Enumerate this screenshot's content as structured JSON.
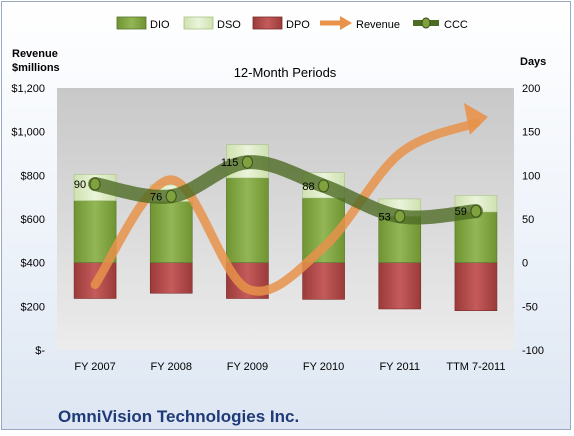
{
  "chart_data": {
    "type": "bar",
    "title": "12-Month Periods",
    "company": "OmniVision Technologies Inc.",
    "left_axis_label": [
      "Revenue",
      "$millions"
    ],
    "right_axis_label": "Days",
    "left_axis": {
      "min": 0,
      "max": 1200,
      "ticks": [
        "$-",
        "$200",
        "$400",
        "$600",
        "$800",
        "$1,000",
        "$1,200"
      ]
    },
    "right_axis": {
      "min": -100,
      "max": 200,
      "ticks": [
        "-100",
        "-50",
        "0",
        "50",
        "100",
        "150",
        "200"
      ]
    },
    "categories": [
      "FY 2007",
      "FY 2008",
      "FY 2009",
      "FY 2010",
      "FY 2011",
      "TTM 7-2011"
    ],
    "series": [
      {
        "name": "DIO",
        "type": "stacked-bar",
        "axis": "right",
        "values": [
          71,
          70,
          97,
          74,
          53,
          58
        ],
        "color": "#7fa23f"
      },
      {
        "name": "DSO",
        "type": "stacked-bar",
        "axis": "right",
        "values": [
          30,
          19,
          38,
          29,
          20,
          19
        ],
        "color": "#dcebc4"
      },
      {
        "name": "DPO",
        "type": "stacked-bar",
        "axis": "right",
        "values": [
          -41,
          -35,
          -41,
          -42,
          -53,
          -55
        ],
        "color": "#b04a4a"
      },
      {
        "name": "Revenue",
        "type": "line",
        "axis": "left",
        "values": [
          300,
          780,
          280,
          470,
          900,
          1040
        ],
        "color": "#e8924a"
      },
      {
        "name": "CCC",
        "type": "line",
        "axis": "right",
        "values": [
          90,
          76,
          115,
          88,
          53,
          59
        ],
        "color": "#4e6b24"
      }
    ],
    "data_labels": [
      "90",
      "76",
      "115",
      "88",
      "53",
      "59"
    ],
    "grid": false,
    "legend_position": "top"
  }
}
